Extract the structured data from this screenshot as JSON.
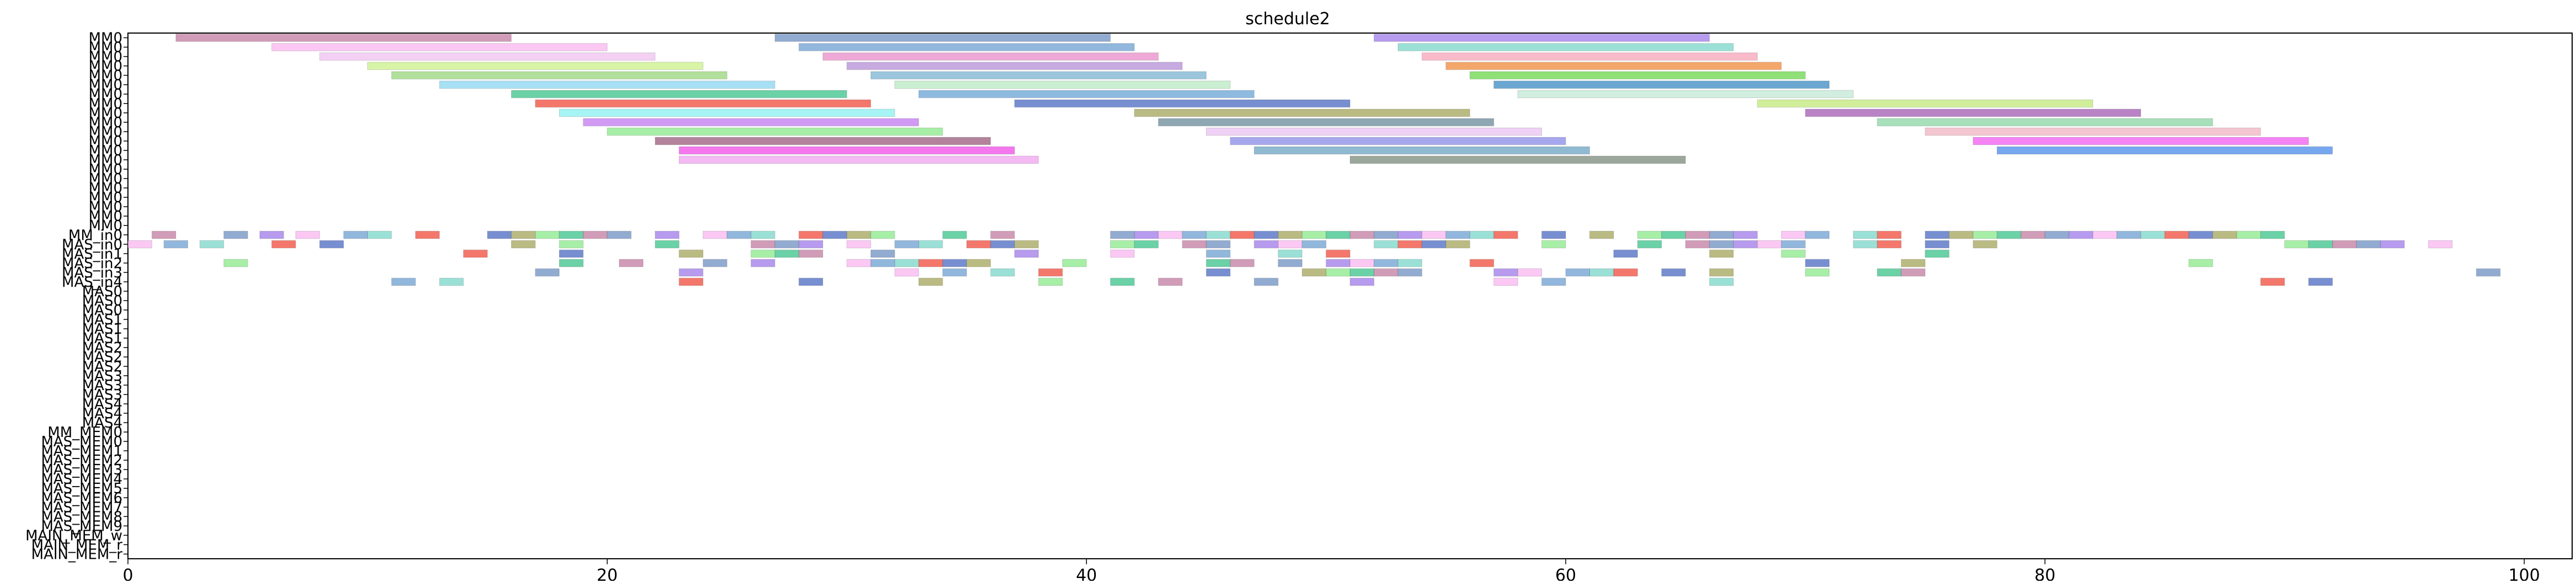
{
  "chart_data": {
    "type": "gantt",
    "title": "schedule2",
    "xlabel": "",
    "ylabel": "",
    "xlim": [
      0,
      102
    ],
    "x_ticks": [
      0,
      20,
      40,
      60,
      80,
      100
    ],
    "grid": false,
    "rows": [
      "MM0",
      "MM0",
      "MM0",
      "MM0",
      "MM0",
      "MM0",
      "MM0",
      "MM0",
      "MM0",
      "MM0",
      "MM0",
      "MM0",
      "MM0",
      "MM0",
      "MM0",
      "MM0",
      "MM0",
      "MM0",
      "MM0",
      "MM0",
      "MM0",
      "MM_in0",
      "MAS_in0",
      "MAS_in1",
      "MAS_in2",
      "MAS_in3",
      "MAS_in4",
      "MAS0",
      "MAS0",
      "MAS0",
      "MAS1",
      "MAS1",
      "MAS1",
      "MAS2",
      "MAS2",
      "MAS2",
      "MAS3",
      "MAS3",
      "MAS3",
      "MAS4",
      "MAS4",
      "MAS4",
      "MM_MEM0",
      "MAS_MEM0",
      "MAS_MEM1",
      "MAS_MEM2",
      "MAS_MEM3",
      "MAS_MEM4",
      "MAS_MEM5",
      "MAS_MEM6",
      "MAS_MEM7",
      "MAS_MEM8",
      "MAS_MEM9",
      "MAIN_MEM_w",
      "MAIN_MEM_r",
      "MAIN_MEM_r"
    ],
    "tasks": [
      [
        0,
        2,
        14,
        "#c27ba0"
      ],
      [
        0,
        27,
        14,
        "#6d8fc2"
      ],
      [
        0,
        52,
        14,
        "#9f7ae8"
      ],
      [
        1,
        6,
        14,
        "#f9b6f0"
      ],
      [
        1,
        28,
        14,
        "#6e9fd1"
      ],
      [
        1,
        53,
        14,
        "#7ad6c8"
      ],
      [
        2,
        8,
        14,
        "#f0c2f0"
      ],
      [
        2,
        29,
        14,
        "#e88cc8"
      ],
      [
        2,
        54,
        14,
        "#f7a3b8"
      ],
      [
        3,
        10,
        14,
        "#c9f08a"
      ],
      [
        3,
        30,
        14,
        "#b38ed6"
      ],
      [
        3,
        55,
        14,
        "#f08a3a"
      ],
      [
        4,
        11,
        14,
        "#96d67a"
      ],
      [
        4,
        31,
        14,
        "#7ab3d1"
      ],
      [
        4,
        56,
        14,
        "#6ad64a"
      ],
      [
        5,
        13,
        14,
        "#8ad6f0"
      ],
      [
        5,
        32,
        14,
        "#b8e8c2"
      ],
      [
        5,
        57,
        14,
        "#3a8ac2"
      ],
      [
        6,
        16,
        14,
        "#3ac28a"
      ],
      [
        6,
        33,
        14,
        "#6aa3d6"
      ],
      [
        6,
        58,
        14,
        "#c2e8d6"
      ],
      [
        7,
        17,
        14,
        "#f04a3a"
      ],
      [
        7,
        37,
        14,
        "#4a6ac2"
      ],
      [
        7,
        68,
        14,
        "#c2e87a"
      ],
      [
        8,
        18,
        14,
        "#8af0f0"
      ],
      [
        8,
        42,
        14,
        "#a3a35a"
      ],
      [
        8,
        70,
        14,
        "#a35ab3"
      ],
      [
        9,
        19,
        14,
        "#c27af0"
      ],
      [
        9,
        43,
        14,
        "#6a8a9a"
      ],
      [
        9,
        73,
        14,
        "#8ad6a3"
      ],
      [
        10,
        20,
        14,
        "#8ae88a"
      ],
      [
        10,
        45,
        14,
        "#e8c2f0"
      ],
      [
        10,
        75,
        14,
        "#f0b3c2"
      ],
      [
        11,
        22,
        14,
        "#9a5a7a"
      ],
      [
        11,
        46,
        14,
        "#8a8ae8"
      ],
      [
        11,
        77,
        14,
        "#f05af0"
      ],
      [
        12,
        23,
        14,
        "#f04ae8"
      ],
      [
        12,
        47,
        14,
        "#6aa3c2"
      ],
      [
        12,
        78,
        14,
        "#4a8ae8"
      ],
      [
        13,
        23,
        15,
        "#f0a3f0"
      ],
      [
        13,
        51,
        14,
        "#7a8a7a"
      ]
    ],
    "scattered_rows": [
      {
        "row": 21,
        "starts": [
          1,
          4,
          5.5,
          7,
          9,
          10,
          12,
          15,
          16,
          17,
          18,
          19,
          20,
          22,
          24,
          25,
          26,
          28,
          29,
          30,
          31,
          34,
          36,
          41,
          42,
          43,
          44,
          45,
          46,
          47,
          48,
          49,
          50,
          51,
          52,
          53,
          54,
          55,
          56,
          57,
          59,
          61,
          63,
          64,
          65,
          66,
          67,
          69,
          70,
          72,
          73,
          75,
          76,
          77,
          78,
          79,
          80,
          81,
          82,
          83,
          84,
          85,
          86,
          87,
          88,
          89
        ]
      },
      {
        "row": 22,
        "starts": [
          0,
          1.5,
          3,
          6,
          8,
          16,
          18,
          22,
          26,
          27,
          28,
          30,
          32,
          33,
          35,
          36,
          37,
          41,
          42,
          44,
          45,
          47,
          48,
          49,
          52,
          53,
          54,
          55,
          59,
          63,
          65,
          66,
          67,
          68,
          69,
          72,
          73,
          75,
          77,
          90,
          91,
          92,
          93,
          94,
          96
        ]
      },
      {
        "row": 23,
        "starts": [
          14,
          18,
          23,
          26,
          27,
          28,
          31,
          37,
          41,
          45,
          48,
          50,
          62,
          66,
          69,
          75
        ]
      },
      {
        "row": 24,
        "starts": [
          4,
          18,
          20.5,
          24,
          26,
          30,
          31,
          32,
          33,
          34,
          35,
          39,
          45,
          46,
          48,
          50,
          51,
          52,
          53,
          56,
          70,
          74,
          86
        ]
      },
      {
        "row": 25,
        "starts": [
          17,
          23,
          32,
          34,
          36,
          38,
          45,
          49,
          50,
          51,
          52,
          53,
          57,
          58,
          60,
          61,
          62,
          64,
          66,
          70,
          73,
          74,
          98
        ]
      },
      {
        "row": 26,
        "starts": [
          11,
          13,
          23,
          28,
          33,
          38,
          41,
          43,
          47,
          51,
          57,
          59,
          66,
          89,
          91
        ]
      }
    ],
    "colors_hint": [
      "#c27ba0",
      "#6d8fc2",
      "#9f7ae8",
      "#f9b6f0",
      "#6e9fd1",
      "#7ad6c8",
      "#f04a3a",
      "#4a6ac2",
      "#a3a35a",
      "#8ae88a",
      "#3ac28a"
    ]
  }
}
